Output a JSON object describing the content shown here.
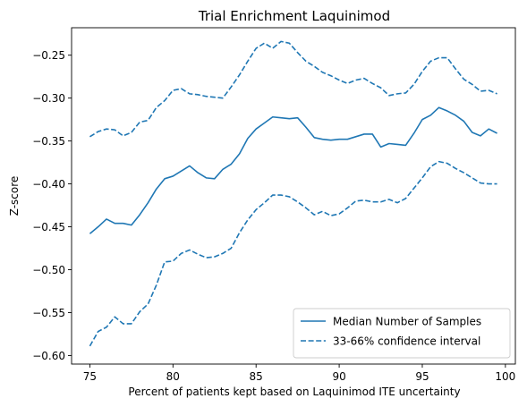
{
  "chart_data": {
    "type": "line",
    "title": "Trial Enrichment Laquinimod",
    "xlabel": "Percent of patients kept based on Laquinimod ITE uncertainty",
    "ylabel": "Z-score",
    "xlim": [
      73.9,
      100.6
    ],
    "ylim": [
      -0.61,
      -0.218
    ],
    "xticks": [
      {
        "value": 75,
        "label": "75"
      },
      {
        "value": 80,
        "label": "80"
      },
      {
        "value": 85,
        "label": "85"
      },
      {
        "value": 90,
        "label": "90"
      },
      {
        "value": 95,
        "label": "95"
      },
      {
        "value": 100,
        "label": "100"
      }
    ],
    "yticks": [
      {
        "value": -0.25,
        "label": "−0.25"
      },
      {
        "value": -0.3,
        "label": "−0.30"
      },
      {
        "value": -0.35,
        "label": "−0.35"
      },
      {
        "value": -0.4,
        "label": "−0.40"
      },
      {
        "value": -0.45,
        "label": "−0.45"
      },
      {
        "value": -0.5,
        "label": "−0.50"
      },
      {
        "value": -0.55,
        "label": "−0.55"
      },
      {
        "value": -0.6,
        "label": "−0.60"
      }
    ],
    "grid": false,
    "legend_position": "lower-right",
    "color": "#1f77b4",
    "x": [
      75,
      75.5,
      76,
      76.5,
      77,
      77.5,
      78,
      78.5,
      79,
      79.5,
      80,
      80.5,
      81,
      81.5,
      82,
      82.5,
      83,
      83.5,
      84,
      84.5,
      85,
      85.5,
      86,
      86.5,
      87,
      87.5,
      88,
      88.5,
      89,
      89.5,
      90,
      90.5,
      91,
      91.5,
      92,
      92.5,
      93,
      93.5,
      94,
      94.5,
      95,
      95.5,
      96,
      96.5,
      97,
      97.5,
      98,
      98.5,
      99,
      99.5
    ],
    "series": [
      {
        "name": "Median Number of Samples",
        "style": "solid",
        "values": [
          -0.458,
          -0.45,
          -0.441,
          -0.446,
          -0.446,
          -0.448,
          -0.436,
          -0.422,
          -0.406,
          -0.394,
          -0.391,
          -0.385,
          -0.379,
          -0.387,
          -0.393,
          -0.394,
          -0.383,
          -0.377,
          -0.365,
          -0.347,
          -0.336,
          -0.329,
          -0.322,
          -0.323,
          -0.324,
          -0.323,
          -0.334,
          -0.346,
          -0.348,
          -0.349,
          -0.348,
          -0.348,
          -0.345,
          -0.342,
          -0.342,
          -0.357,
          -0.353,
          -0.354,
          -0.355,
          -0.341,
          -0.325,
          -0.32,
          -0.311,
          -0.315,
          -0.32,
          -0.327,
          -0.34,
          -0.344,
          -0.336,
          -0.341
        ]
      },
      {
        "name": "33-66% confidence interval",
        "style": "dashed",
        "values": [
          -0.345,
          -0.339,
          -0.336,
          -0.337,
          -0.344,
          -0.34,
          -0.328,
          -0.326,
          -0.311,
          -0.303,
          -0.291,
          -0.289,
          -0.295,
          -0.296,
          -0.298,
          -0.299,
          -0.3,
          -0.287,
          -0.273,
          -0.257,
          -0.242,
          -0.236,
          -0.242,
          -0.234,
          -0.236,
          -0.247,
          -0.257,
          -0.263,
          -0.27,
          -0.274,
          -0.279,
          -0.283,
          -0.279,
          -0.277,
          -0.283,
          -0.288,
          -0.297,
          -0.295,
          -0.294,
          -0.284,
          -0.269,
          -0.257,
          -0.253,
          -0.253,
          -0.266,
          -0.278,
          -0.284,
          -0.292,
          -0.291,
          -0.295
        ]
      },
      {
        "name": "",
        "style": "dashed",
        "values": [
          -0.589,
          -0.572,
          -0.567,
          -0.555,
          -0.563,
          -0.563,
          -0.549,
          -0.54,
          -0.518,
          -0.491,
          -0.49,
          -0.481,
          -0.477,
          -0.482,
          -0.486,
          -0.485,
          -0.481,
          -0.475,
          -0.457,
          -0.442,
          -0.43,
          -0.422,
          -0.413,
          -0.413,
          -0.415,
          -0.421,
          -0.428,
          -0.436,
          -0.432,
          -0.437,
          -0.435,
          -0.428,
          -0.42,
          -0.419,
          -0.421,
          -0.421,
          -0.418,
          -0.422,
          -0.417,
          -0.405,
          -0.393,
          -0.38,
          -0.374,
          -0.376,
          -0.382,
          -0.387,
          -0.393,
          -0.399,
          -0.4,
          -0.4
        ]
      }
    ]
  }
}
